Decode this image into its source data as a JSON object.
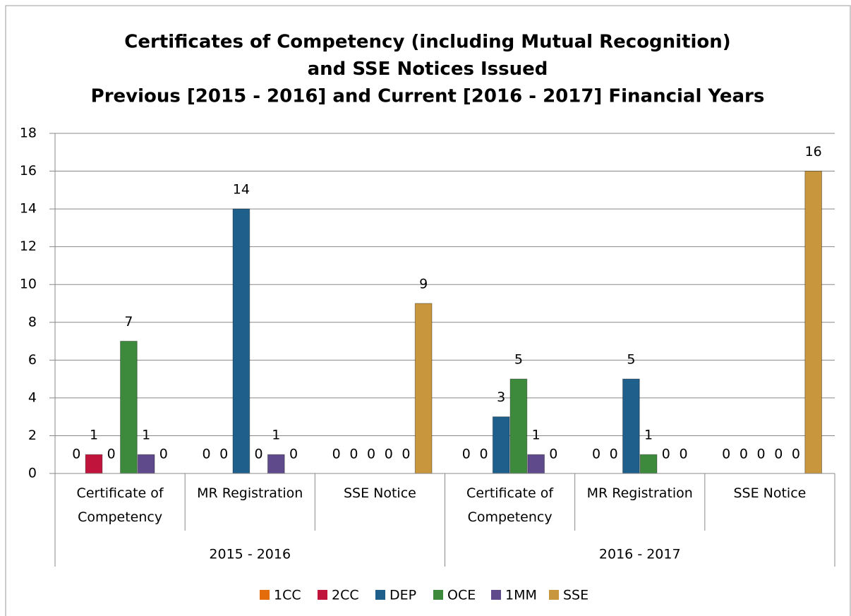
{
  "chart_data": {
    "type": "bar",
    "title": [
      "Certificates of Competency (including Mutual Recognition)",
      "and SSE Notices Issued",
      "Previous [2015 - 2016] and Current [2016 - 2017] Financial Years"
    ],
    "groups": [
      {
        "name": "2015 - 2016",
        "categories": [
          "Certificate of Competency",
          "MR Registration",
          "SSE Notice"
        ]
      },
      {
        "name": "2016 - 2017",
        "categories": [
          "Certificate of Competency",
          "MR Registration",
          "SSE Notice"
        ]
      }
    ],
    "series": [
      {
        "name": "1CC",
        "color": "#e46c0a",
        "values": [
          0,
          0,
          0,
          0,
          0,
          0
        ]
      },
      {
        "name": "2CC",
        "color": "#c0143c",
        "values": [
          1,
          0,
          0,
          0,
          0,
          0
        ]
      },
      {
        "name": "DEP",
        "color": "#1f5f8b",
        "values": [
          0,
          14,
          0,
          3,
          5,
          0
        ]
      },
      {
        "name": "OCE",
        "color": "#3d8a3d",
        "values": [
          7,
          0,
          0,
          5,
          1,
          0
        ]
      },
      {
        "name": "1MM",
        "color": "#5f4a8b",
        "values": [
          1,
          1,
          0,
          1,
          0,
          0
        ]
      },
      {
        "name": "SSE",
        "color": "#c8963c",
        "values": [
          0,
          0,
          9,
          0,
          0,
          16
        ]
      }
    ],
    "ylim": [
      0,
      18
    ],
    "yticks": [
      0,
      2,
      4,
      6,
      8,
      10,
      12,
      14,
      16,
      18
    ],
    "grid": true,
    "legend": "bottom"
  }
}
